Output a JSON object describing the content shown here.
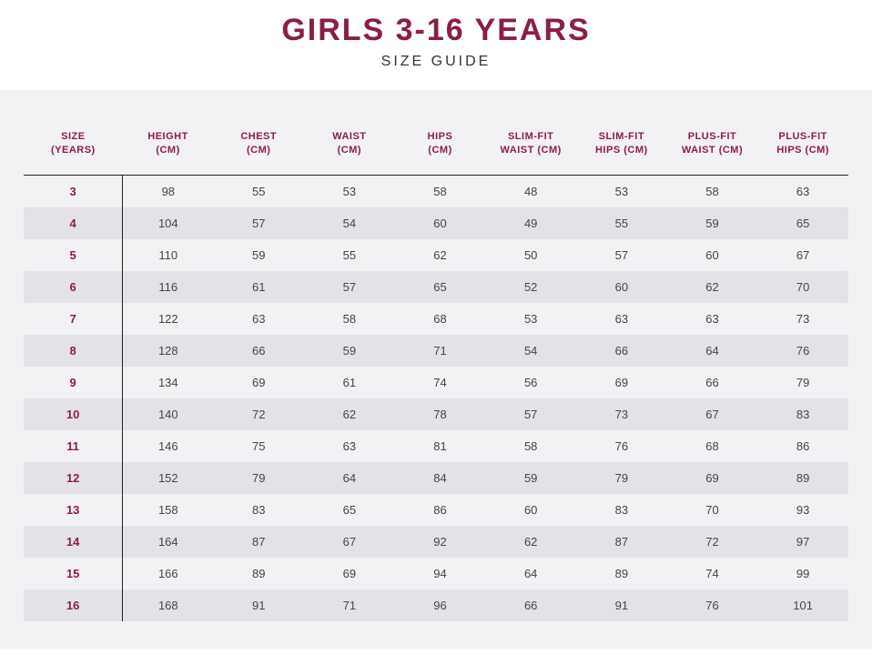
{
  "header": {
    "title": "GIRLS 3-16 YEARS",
    "subtitle": "SIZE GUIDE"
  },
  "colors": {
    "brand": "#8a1e4a",
    "page_bg": "#ffffff",
    "table_bg": "#f2f1f4",
    "stripe_bg": "#e4e2e8",
    "rule": "#222222",
    "body_text": "#444444"
  },
  "table": {
    "columns": [
      {
        "line1": "SIZE",
        "line2": "(YEARS)"
      },
      {
        "line1": "HEIGHT",
        "line2": "(CM)"
      },
      {
        "line1": "CHEST",
        "line2": "(CM)"
      },
      {
        "line1": "WAIST",
        "line2": "(CM)"
      },
      {
        "line1": "HIPS",
        "line2": "(CM)"
      },
      {
        "line1": "SLIM-FIT",
        "line2": "WAIST (CM)"
      },
      {
        "line1": "SLIM-FIT",
        "line2": "HIPS (CM)"
      },
      {
        "line1": "PLUS-FIT",
        "line2": "WAIST (CM)"
      },
      {
        "line1": "PLUS-FIT",
        "line2": "HIPS (CM)"
      }
    ],
    "rows": [
      [
        "3",
        "98",
        "55",
        "53",
        "58",
        "48",
        "53",
        "58",
        "63"
      ],
      [
        "4",
        "104",
        "57",
        "54",
        "60",
        "49",
        "55",
        "59",
        "65"
      ],
      [
        "5",
        "110",
        "59",
        "55",
        "62",
        "50",
        "57",
        "60",
        "67"
      ],
      [
        "6",
        "116",
        "61",
        "57",
        "65",
        "52",
        "60",
        "62",
        "70"
      ],
      [
        "7",
        "122",
        "63",
        "58",
        "68",
        "53",
        "63",
        "63",
        "73"
      ],
      [
        "8",
        "128",
        "66",
        "59",
        "71",
        "54",
        "66",
        "64",
        "76"
      ],
      [
        "9",
        "134",
        "69",
        "61",
        "74",
        "56",
        "69",
        "66",
        "79"
      ],
      [
        "10",
        "140",
        "72",
        "62",
        "78",
        "57",
        "73",
        "67",
        "83"
      ],
      [
        "11",
        "146",
        "75",
        "63",
        "81",
        "58",
        "76",
        "68",
        "86"
      ],
      [
        "12",
        "152",
        "79",
        "64",
        "84",
        "59",
        "79",
        "69",
        "89"
      ],
      [
        "13",
        "158",
        "83",
        "65",
        "86",
        "60",
        "83",
        "70",
        "93"
      ],
      [
        "14",
        "164",
        "87",
        "67",
        "92",
        "62",
        "87",
        "72",
        "97"
      ],
      [
        "15",
        "166",
        "89",
        "69",
        "94",
        "64",
        "89",
        "74",
        "99"
      ],
      [
        "16",
        "168",
        "91",
        "71",
        "96",
        "66",
        "91",
        "76",
        "101"
      ]
    ]
  }
}
